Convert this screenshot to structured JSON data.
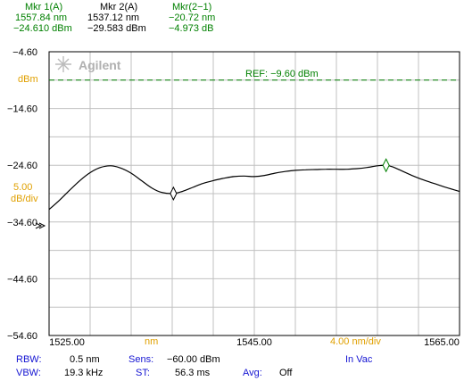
{
  "markers": [
    {
      "label": "Mkr 1(A)",
      "line1": "1557.84 nm",
      "line2": "−24.610 dBm"
    },
    {
      "label": "Mkr 2(A)",
      "line1": "1537.12 nm",
      "line2": "−29.583 dBm"
    },
    {
      "label": "Mkr(2−1)",
      "line1": "−20.72 nm",
      "line2": "−4.973 dB"
    }
  ],
  "logo": {
    "text": "Agilent"
  },
  "y_axis": {
    "unit_label": "dBm",
    "scale_value": "5.00",
    "scale_unit": "dB/div",
    "tick_labels": [
      "−4.60",
      "−14.60",
      "−24.60",
      "−34.60",
      "−44.60",
      "−54.60"
    ]
  },
  "x_axis": {
    "tick_labels": [
      "1525.00",
      "1545.00",
      "1565.00"
    ],
    "unit_label": "nm",
    "span_label": "4.00 nm/div"
  },
  "reference": {
    "label": "REF: −9.60 dBm",
    "value": -9.6
  },
  "settings": {
    "rbw_label": "RBW:",
    "rbw_value": "0.5 nm",
    "sens_label": "Sens:",
    "sens_value": "−60.00 dBm",
    "medium": "In Vac",
    "vbw_label": "VBW:",
    "vbw_value": "19.3 kHz",
    "st_label": "ST:",
    "st_value": "56.3 ms",
    "avg_label": "Avg:",
    "avg_value": "Off"
  },
  "colors": {
    "green": "#008000",
    "blue": "#1414d2",
    "orange": "#e0a000",
    "grid": "#c0c0c0",
    "trace": "#000000"
  },
  "chart_data": {
    "type": "line",
    "xlim": [
      1525,
      1565
    ],
    "ylim": [
      -54.6,
      -4.6
    ],
    "grid": true,
    "series": [
      {
        "x": [
          1525.0,
          1526.0,
          1527.0,
          1528.0,
          1529.0,
          1530.0,
          1531.0,
          1532.0,
          1533.0,
          1534.0,
          1535.0,
          1536.0,
          1537.12,
          1538.0,
          1539.0,
          1540.0,
          1541.0,
          1542.0,
          1543.0,
          1544.0,
          1545.0,
          1546.0,
          1547.0,
          1548.0,
          1549.0,
          1550.0,
          1551.0,
          1552.0,
          1553.0,
          1554.0,
          1555.0,
          1556.0,
          1557.0,
          1557.84,
          1558.5,
          1559.5,
          1560.5,
          1561.5,
          1562.5,
          1563.5,
          1565.0
        ],
        "y": [
          -32.4,
          -30.8,
          -29.0,
          -27.3,
          -25.9,
          -25.0,
          -24.7,
          -25.1,
          -26.0,
          -27.3,
          -28.6,
          -29.4,
          -29.58,
          -29.2,
          -28.5,
          -27.8,
          -27.3,
          -26.9,
          -26.6,
          -26.5,
          -26.6,
          -26.4,
          -26.0,
          -25.7,
          -25.5,
          -25.4,
          -25.35,
          -25.3,
          -25.3,
          -25.3,
          -25.2,
          -25.0,
          -24.7,
          -24.61,
          -24.9,
          -25.7,
          -26.5,
          -27.2,
          -27.8,
          -28.4,
          -29.2
        ]
      }
    ],
    "markers": [
      {
        "name": "Mkr 1",
        "x": 1557.84,
        "y": -24.61
      },
      {
        "name": "Mkr 2",
        "x": 1537.12,
        "y": -29.583
      }
    ]
  }
}
